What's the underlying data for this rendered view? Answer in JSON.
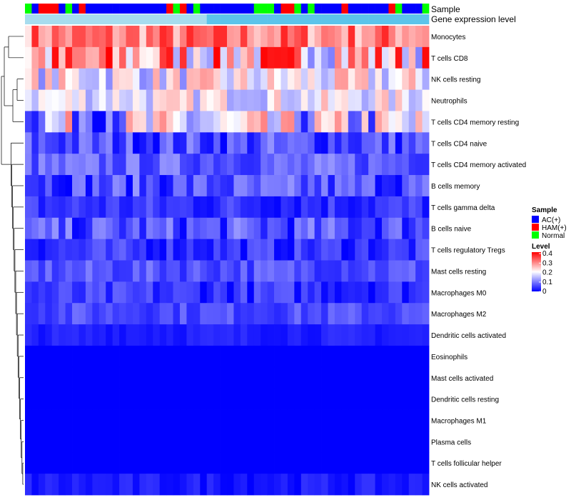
{
  "chart_data": {
    "type": "heatmap",
    "annotation_rows": [
      "Sample",
      "Gene expression level"
    ],
    "sample_groups": [
      "AC(+)",
      "HAM(+)",
      "Normal"
    ],
    "sample_group_colors": {
      "AC(+)": "#0000ff",
      "HAM(+)": "#ff0000",
      "Normal": "#00ff00"
    },
    "sample_annotation": [
      "Normal",
      "AC(+)",
      "HAM(+)",
      "HAM(+)",
      "HAM(+)",
      "AC(+)",
      "Normal",
      "AC(+)",
      "HAM(+)",
      "AC(+)",
      "AC(+)",
      "AC(+)",
      "AC(+)",
      "AC(+)",
      "AC(+)",
      "AC(+)",
      "AC(+)",
      "AC(+)",
      "AC(+)",
      "AC(+)",
      "AC(+)",
      "HAM(+)",
      "Normal",
      "HAM(+)",
      "AC(+)",
      "Normal",
      "AC(+)",
      "AC(+)",
      "AC(+)",
      "AC(+)",
      "AC(+)",
      "AC(+)",
      "AC(+)",
      "AC(+)",
      "Normal",
      "Normal",
      "Normal",
      "AC(+)",
      "HAM(+)",
      "HAM(+)",
      "Normal",
      "AC(+)",
      "Normal",
      "AC(+)",
      "AC(+)",
      "AC(+)",
      "AC(+)",
      "HAM(+)",
      "AC(+)",
      "AC(+)",
      "AC(+)",
      "AC(+)",
      "AC(+)",
      "AC(+)",
      "HAM(+)",
      "Normal",
      "AC(+)",
      "AC(+)",
      "AC(+)",
      "Normal"
    ],
    "gene_expression_bar": {
      "left_color": "#a7dcee",
      "right_color": "#5cc4ea",
      "split_column": 27
    },
    "rows": [
      "Monocytes",
      "T cells CD8",
      "NK cells resting",
      "Neutrophils",
      "T cells CD4 memory resting",
      "T cells CD4 naive",
      "T cells CD4 memory activated",
      "B cells memory",
      "T cells gamma delta",
      "B cells naive",
      "T cells regulatory  Tregs",
      "Mast cells resting",
      "Macrophages M0",
      "Macrophages M2",
      "Dendritic cells activated",
      "Eosinophils",
      "Mast cells activated",
      "Dendritic cells resting",
      "Macrophages M1",
      "Plasma cells",
      "T cells follicular helper",
      "NK cells activated"
    ],
    "column_count": 60,
    "legend_sample_title": "Sample",
    "legend_level_title": "Level",
    "level_ticks": [
      "0.4",
      "0.3",
      "0.2",
      "0.1",
      "0"
    ],
    "color_scale": {
      "min": 0,
      "max": 0.4,
      "low": "#0000ff",
      "mid": "#ffffff",
      "midpoint": 0.2,
      "high": "#ff0000"
    },
    "value_profile": {
      "Monocytes": [
        0.22,
        0.38
      ],
      "T cells CD8": [
        0.1,
        0.42
      ],
      "NK cells resting": [
        0.1,
        0.28
      ],
      "Neutrophils": [
        0.12,
        0.26
      ],
      "T cells CD4 memory resting": [
        0.0,
        0.3
      ],
      "T cells CD4 naive": [
        0.0,
        0.12
      ],
      "T cells CD4 memory activated": [
        0.03,
        0.12
      ],
      "B cells memory": [
        0.0,
        0.12
      ],
      "T cells gamma delta": [
        0.0,
        0.08
      ],
      "B cells naive": [
        0.0,
        0.12
      ],
      "T cells regulatory  Tregs": [
        0.0,
        0.08
      ],
      "Mast cells resting": [
        0.03,
        0.1
      ],
      "Macrophages M0": [
        0.0,
        0.08
      ],
      "Macrophages M2": [
        0.03,
        0.09
      ],
      "Dendritic cells activated": [
        0.01,
        0.04
      ],
      "Eosinophils": [
        0.0,
        0.0
      ],
      "Mast cells activated": [
        0.0,
        0.0
      ],
      "Dendritic cells resting": [
        0.0,
        0.0
      ],
      "Macrophages M1": [
        0.0,
        0.0
      ],
      "Plasma cells": [
        0.0,
        0.0
      ],
      "T cells follicular helper": [
        0.0,
        0.0
      ],
      "NK cells activated": [
        0.0,
        0.04
      ]
    }
  }
}
